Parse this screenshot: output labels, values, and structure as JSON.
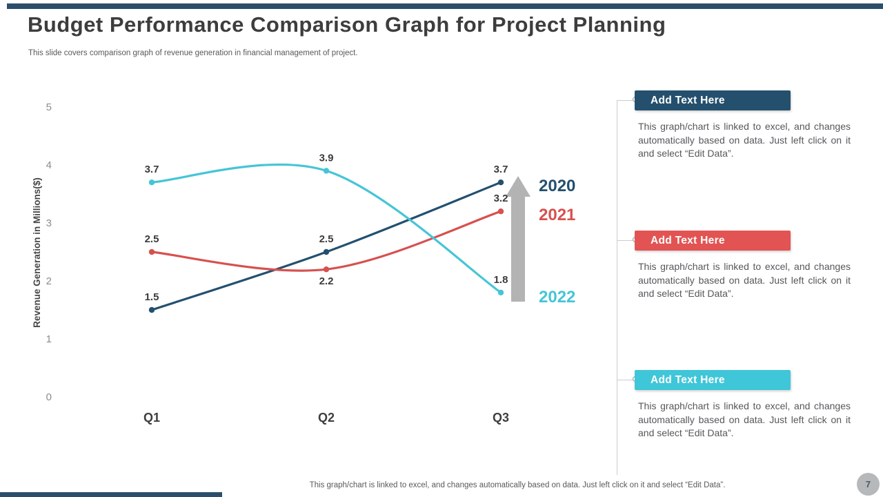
{
  "slide": {
    "title": "Budget Performance Comparison Graph for Project Planning",
    "subtitle": "This slide covers comparison graph of revenue generation in financial management of project.",
    "footer_note": "This graph/chart is linked to excel,  and changes automatically based on data. Just left click on it and select “Edit Data”.",
    "page_number": "7"
  },
  "theme": {
    "accent_bar_color": "#2b4f6a",
    "title_color": "#3d3d3d",
    "body_gray": "#55575a"
  },
  "chart_data": {
    "type": "line",
    "title": "",
    "categories": [
      "Q1",
      "Q2",
      "Q3"
    ],
    "series": [
      {
        "name": "2020",
        "color": "#23506f",
        "values": [
          1.5,
          2.5,
          3.7
        ],
        "label_dy": [
          -14,
          -14,
          -14
        ]
      },
      {
        "name": "2021",
        "color": "#d6514f",
        "values": [
          2.5,
          2.2,
          3.2
        ],
        "label_dy": [
          -14,
          22,
          -14
        ]
      },
      {
        "name": "2022",
        "color": "#45c5d6",
        "values": [
          3.7,
          3.9,
          1.8
        ],
        "label_dy": [
          -14,
          -14,
          -14
        ]
      }
    ],
    "xlabel": "",
    "ylabel": "Revenue Generation in Millions($)",
    "yticks": [
      0,
      1,
      2,
      3,
      4,
      5
    ],
    "ylim": [
      0,
      5
    ],
    "grid": false,
    "legend_position": "right of last points",
    "annotations": [
      {
        "type": "arrow-up",
        "color": "#b3b3b3",
        "description": "gray upward block arrow beside Q3 points"
      }
    ]
  },
  "panel": {
    "items": [
      {
        "heading": "Add Text Here",
        "color": "#24506e",
        "body": "This graph/chart is linked to excel, and changes automatically based on data. Just left click on it and select “Edit Data”."
      },
      {
        "heading": "Add Text Here",
        "color": "#e25453",
        "body": "This graph/chart is linked to excel, and changes automatically based on data. Just left click on it and select “Edit Data”."
      },
      {
        "heading": "Add Text Here",
        "color": "#3fc6d8",
        "body": "This graph/chart is linked to excel, and changes automatically based on data. Just left click on it and select “Edit Data”."
      }
    ]
  }
}
